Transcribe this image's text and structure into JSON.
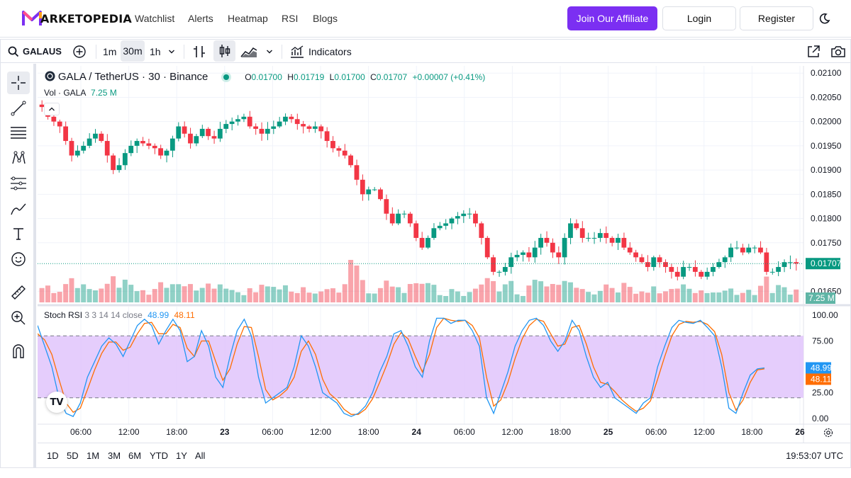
{
  "brand": {
    "name": "ARKETOPEDIA",
    "logo_letter": "M"
  },
  "nav": {
    "links": [
      "Watchlist",
      "Alerts",
      "Heatmap",
      "RSI",
      "Blogs"
    ],
    "affiliate": "Join Our Affiliate",
    "login": "Login",
    "register": "Register"
  },
  "toolbar": {
    "symbol": "GALAUS",
    "intervals": [
      "1m",
      "30m",
      "1h"
    ],
    "active_interval": "30m",
    "indicators": "Indicators"
  },
  "legend": {
    "title": "GALA / TetherUS · 30 · Binance",
    "o_label": "O",
    "o": "0.01700",
    "h_label": "H",
    "h": "0.01719",
    "l_label": "L",
    "l": "0.01700",
    "c_label": "C",
    "c": "0.01707",
    "change": "+0.00007 (+0.41%)",
    "vol_label": "Vol · GALA",
    "vol_value": "7.25 M"
  },
  "rsi_legend": {
    "title": "Stoch RSI",
    "params": "3 3 14 14 close",
    "k": "48.99",
    "d": "48.11"
  },
  "price_axis": [
    "0.02100",
    "0.02050",
    "0.02000",
    "0.01950",
    "0.01900",
    "0.01850",
    "0.01800",
    "0.01750",
    "0.01650"
  ],
  "price_badge": "0.01707",
  "volume_badge": "7.25 M",
  "rsi_axis": [
    "100.00",
    "75.00",
    "25.00",
    "0.00"
  ],
  "rsi_badges": {
    "k": "48.99",
    "d": "48.11"
  },
  "time_axis": [
    {
      "label": "06:00",
      "bold": false
    },
    {
      "label": "12:00",
      "bold": false
    },
    {
      "label": "18:00",
      "bold": false
    },
    {
      "label": "23",
      "bold": true
    },
    {
      "label": "06:00",
      "bold": false
    },
    {
      "label": "12:00",
      "bold": false
    },
    {
      "label": "18:00",
      "bold": false
    },
    {
      "label": "24",
      "bold": true
    },
    {
      "label": "06:00",
      "bold": false
    },
    {
      "label": "12:00",
      "bold": false
    },
    {
      "label": "18:00",
      "bold": false
    },
    {
      "label": "25",
      "bold": true
    },
    {
      "label": "06:00",
      "bold": false
    },
    {
      "label": "12:00",
      "bold": false
    },
    {
      "label": "18:00",
      "bold": false
    },
    {
      "label": "26",
      "bold": true
    }
  ],
  "ranges": [
    "1D",
    "5D",
    "1M",
    "3M",
    "6M",
    "YTD",
    "1Y",
    "All"
  ],
  "clock": "19:53:07 UTC",
  "colors": {
    "up": "#089981",
    "down": "#f23645",
    "accent": "#7b2ff2",
    "rsi_k": "#2196f3",
    "rsi_d": "#ff6d00",
    "rsi_band": "#e1c4fb"
  },
  "price_path": [
    0.0203,
    0.0201,
    0.02,
    0.0199,
    0.0196,
    0.0193,
    0.0194,
    0.0195,
    0.01965,
    0.01975,
    0.0196,
    0.0193,
    0.019,
    0.0191,
    0.01935,
    0.0195,
    0.0196,
    0.01955,
    0.0195,
    0.01945,
    0.0193,
    0.0194,
    0.01965,
    0.0199,
    0.01975,
    0.01955,
    0.0197,
    0.01985,
    0.0197,
    0.01965,
    0.01985,
    0.01995,
    0.02,
    0.02005,
    0.0201,
    0.0199,
    0.01985,
    0.01975,
    0.01985,
    0.0199,
    0.02,
    0.0201,
    0.02005,
    0.01995,
    0.0199,
    0.01985,
    0.0199,
    0.0198,
    0.0196,
    0.01945,
    0.0194,
    0.0193,
    0.0191,
    0.0188,
    0.0185,
    0.0186,
    0.0186,
    0.0184,
    0.0181,
    0.0179,
    0.0181,
    0.0181,
    0.0179,
    0.0176,
    0.0174,
    0.0176,
    0.0178,
    0.01785,
    0.0179,
    0.018,
    0.01805,
    0.0181,
    0.0181,
    0.0179,
    0.0176,
    0.0172,
    0.0169,
    0.0169,
    0.017,
    0.0172,
    0.01725,
    0.0173,
    0.0172,
    0.0174,
    0.0176,
    0.0175,
    0.0173,
    0.0172,
    0.0176,
    0.0179,
    0.0178,
    0.0176,
    0.0176,
    0.0176,
    0.0177,
    0.0176,
    0.0175,
    0.0176,
    0.0174,
    0.0173,
    0.0172,
    0.0171,
    0.017,
    0.0172,
    0.0171,
    0.017,
    0.0169,
    0.0168,
    0.017,
    0.017,
    0.0169,
    0.0168,
    0.0169,
    0.017,
    0.0171,
    0.0172,
    0.0174,
    0.0174,
    0.0173,
    0.0174,
    0.0174,
    0.0173,
    0.0169,
    0.0169,
    0.017,
    0.0171,
    0.0171,
    0.01707
  ],
  "stoch_k": [
    90,
    70,
    50,
    20,
    5,
    2,
    15,
    40,
    55,
    70,
    78,
    72,
    60,
    75,
    90,
    96,
    90,
    72,
    85,
    96,
    85,
    55,
    60,
    85,
    70,
    40,
    30,
    60,
    85,
    96,
    80,
    40,
    15,
    20,
    25,
    30,
    50,
    80,
    70,
    50,
    25,
    20,
    15,
    5,
    2,
    5,
    12,
    25,
    45,
    60,
    82,
    85,
    70,
    50,
    40,
    75,
    97,
    97,
    92,
    95,
    95,
    85,
    70,
    20,
    5,
    25,
    45,
    70,
    85,
    95,
    97,
    90,
    75,
    65,
    75,
    95,
    85,
    60,
    40,
    30,
    35,
    20,
    15,
    10,
    5,
    15,
    20,
    50,
    70,
    88,
    95,
    93,
    92,
    95,
    88,
    80,
    50,
    10,
    5,
    25,
    42,
    48,
    49
  ],
  "stoch_d": [
    82,
    76,
    62,
    38,
    15,
    6,
    10,
    28,
    47,
    63,
    74,
    74,
    66,
    69,
    82,
    92,
    93,
    82,
    82,
    91,
    88,
    68,
    60,
    75,
    75,
    55,
    37,
    48,
    72,
    89,
    88,
    60,
    28,
    18,
    22,
    28,
    40,
    65,
    75,
    62,
    38,
    24,
    18,
    9,
    4,
    4,
    9,
    19,
    35,
    52,
    72,
    83,
    77,
    60,
    45,
    62,
    88,
    97,
    95,
    94,
    95,
    90,
    78,
    40,
    12,
    18,
    35,
    58,
    77,
    90,
    96,
    94,
    82,
    70,
    72,
    88,
    90,
    72,
    50,
    35,
    33,
    26,
    18,
    12,
    7,
    10,
    17,
    38,
    60,
    80,
    91,
    94,
    93,
    94,
    91,
    84,
    62,
    25,
    8,
    18,
    35,
    47,
    48.11
  ]
}
